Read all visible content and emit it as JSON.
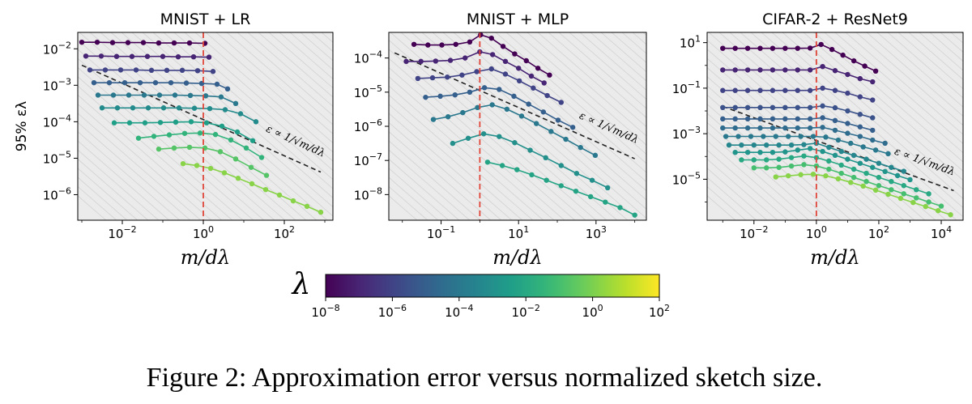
{
  "caption": "Figure 2: Approximation error versus normalized sketch size.",
  "colors": {
    "plot_bg": "#ebebeb",
    "hatch": "#d4d4d4",
    "ref_line": "#e0473a",
    "trend_line": "#222222"
  },
  "colorbar": {
    "label": "λ",
    "min_exp": -8,
    "max_exp": 2,
    "ticks": [
      -8,
      -6,
      -4,
      -2,
      0,
      2
    ],
    "tick_labels": [
      "10^-8",
      "10^-6",
      "10^-4",
      "10^-2",
      "10^0",
      "10^2"
    ],
    "colormap": "viridis"
  },
  "chart_data": [
    {
      "type": "line",
      "title": "MNIST + LR",
      "xlabel": "m/dλ",
      "ylabel": "95% ελ",
      "xscale": "log",
      "yscale": "log",
      "xlim_log10": [
        -3.1,
        3.2
      ],
      "ylim_log10": [
        -6.7,
        -1.55
      ],
      "xticks": [
        -2,
        0,
        2
      ],
      "xtick_labels": [
        "10^-2",
        "10^0",
        "10^2"
      ],
      "yticks": [
        -6,
        -5,
        -4,
        -3,
        -2
      ],
      "ytick_labels": [
        "10^-6",
        "10^-5",
        "10^-4",
        "10^-3",
        "10^-2"
      ],
      "vline_x_log10": 0,
      "trend_line": {
        "x_log10": [
          -3.0,
          2.9
        ],
        "y_log10": [
          -2.45,
          -5.38
        ],
        "label": "ε ∝ 1/√m/dλ"
      },
      "series": [
        {
          "lambda_log10": -8,
          "x_log10": [
            -3.0,
            -2.62,
            -2.24,
            -1.86,
            -1.48,
            -1.1,
            -0.72,
            -0.34,
            0.04
          ],
          "y_log10": [
            -1.82,
            -1.82,
            -1.83,
            -1.83,
            -1.83,
            -1.84,
            -1.84,
            -1.84,
            -1.85
          ]
        },
        {
          "lambda_log10": -7,
          "x_log10": [
            -2.9,
            -2.52,
            -2.14,
            -1.76,
            -1.38,
            -1.0,
            -0.62,
            -0.24,
            0.14
          ],
          "y_log10": [
            -2.2,
            -2.2,
            -2.21,
            -2.21,
            -2.21,
            -2.21,
            -2.22,
            -2.22,
            -2.23
          ]
        },
        {
          "lambda_log10": -6,
          "x_log10": [
            -2.8,
            -2.42,
            -2.04,
            -1.66,
            -1.28,
            -0.9,
            -0.52,
            -0.14,
            0.24
          ],
          "y_log10": [
            -2.58,
            -2.58,
            -2.58,
            -2.58,
            -2.59,
            -2.59,
            -2.59,
            -2.6,
            -2.62
          ]
        },
        {
          "lambda_log10": -5,
          "x_log10": [
            -2.7,
            -2.32,
            -1.94,
            -1.56,
            -1.18,
            -0.8,
            -0.42,
            -0.04,
            0.34,
            0.6
          ],
          "y_log10": [
            -2.93,
            -2.93,
            -2.93,
            -2.93,
            -2.93,
            -2.93,
            -2.94,
            -2.95,
            -2.97,
            -3.1
          ]
        },
        {
          "lambda_log10": -4,
          "x_log10": [
            -2.6,
            -2.22,
            -1.84,
            -1.46,
            -1.08,
            -0.7,
            -0.32,
            0.06,
            0.44,
            0.8
          ],
          "y_log10": [
            -3.27,
            -3.27,
            -3.27,
            -3.27,
            -3.27,
            -3.27,
            -3.28,
            -3.29,
            -3.32,
            -3.5
          ]
        },
        {
          "lambda_log10": -3.2,
          "x_log10": [
            -2.5,
            -2.12,
            -1.74,
            -1.36,
            -0.98,
            -0.6,
            -0.22,
            0.16,
            0.54,
            0.92,
            1.3
          ],
          "y_log10": [
            -3.62,
            -3.62,
            -3.62,
            -3.62,
            -3.62,
            -3.62,
            -3.63,
            -3.64,
            -3.67,
            -3.78,
            -4.0
          ]
        },
        {
          "lambda_log10": -2.4,
          "x_log10": [
            -2.2,
            -1.82,
            -1.44,
            -1.06,
            -0.68,
            -0.3,
            0.08,
            0.46,
            0.84,
            1.22
          ],
          "y_log10": [
            -4.03,
            -4.03,
            -4.03,
            -4.02,
            -4.01,
            -4.0,
            -4.03,
            -4.12,
            -4.28,
            -4.52
          ]
        },
        {
          "lambda_log10": -1.5,
          "x_log10": [
            -1.6,
            -1.22,
            -0.84,
            -0.46,
            -0.08,
            0.3,
            0.68,
            1.06,
            1.44
          ],
          "y_log10": [
            -4.45,
            -4.4,
            -4.36,
            -4.32,
            -4.31,
            -4.35,
            -4.5,
            -4.72,
            -4.98
          ]
        },
        {
          "lambda_log10": -0.7,
          "x_log10": [
            -1.1,
            -0.72,
            -0.34,
            0.04,
            0.42,
            0.8,
            1.18,
            1.56
          ],
          "y_log10": [
            -4.75,
            -4.72,
            -4.7,
            -4.72,
            -4.82,
            -5.02,
            -5.25,
            -5.47
          ]
        },
        {
          "lambda_log10": 0.2,
          "x_log10": [
            -0.5,
            -0.16,
            0.18,
            0.52,
            0.86,
            1.2,
            1.54,
            1.88,
            2.22,
            2.56,
            2.9
          ],
          "y_log10": [
            -5.15,
            -5.2,
            -5.28,
            -5.4,
            -5.55,
            -5.7,
            -5.86,
            -6.01,
            -6.17,
            -6.32,
            -6.48
          ]
        }
      ]
    },
    {
      "type": "line",
      "title": "MNIST + MLP",
      "xlabel": "m/dλ",
      "ylabel": "",
      "xscale": "log",
      "yscale": "log",
      "xlim_log10": [
        -2.35,
        4.3
      ],
      "ylim_log10": [
        -8.75,
        -3.25
      ],
      "xticks": [
        -1,
        1,
        3
      ],
      "xtick_labels": [
        "10^-1",
        "10^1",
        "10^3"
      ],
      "yticks": [
        -8,
        -7,
        -6,
        -5,
        -4
      ],
      "ytick_labels": [
        "10^-8",
        "10^-7",
        "10^-6",
        "10^-5",
        "10^-4"
      ],
      "vline_x_log10": 0,
      "trend_line": {
        "x_log10": [
          -2.2,
          4.0
        ],
        "y_log10": [
          -3.85,
          -6.95
        ],
        "label": "ε ∝ 1/√m/dλ"
      },
      "series": [
        {
          "lambda_log10": -8,
          "x_log10": [
            -1.7,
            -1.34,
            -0.98,
            -0.62,
            -0.26,
            0.02,
            0.3,
            0.6,
            0.9,
            1.2,
            1.5,
            1.8
          ],
          "y_log10": [
            -3.6,
            -3.62,
            -3.62,
            -3.6,
            -3.53,
            -3.32,
            -3.42,
            -3.66,
            -3.88,
            -4.08,
            -4.3,
            -4.5
          ]
        },
        {
          "lambda_log10": -7,
          "x_log10": [
            -1.9,
            -1.52,
            -1.14,
            -0.76,
            -0.38,
            0.0,
            0.33,
            0.66,
            1.0,
            1.33,
            1.66
          ],
          "y_log10": [
            -4.1,
            -4.1,
            -4.09,
            -4.07,
            -4.0,
            -3.82,
            -3.9,
            -4.1,
            -4.3,
            -4.53,
            -4.73
          ]
        },
        {
          "lambda_log10": -6,
          "x_log10": [
            -1.6,
            -1.22,
            -0.84,
            -0.46,
            -0.08,
            0.3,
            0.66,
            1.02,
            1.38,
            1.74,
            2.1
          ],
          "y_log10": [
            -4.6,
            -4.58,
            -4.56,
            -4.5,
            -4.4,
            -4.32,
            -4.47,
            -4.67,
            -4.88,
            -5.1,
            -5.3
          ]
        },
        {
          "lambda_log10": -5,
          "x_log10": [
            -1.4,
            -1.02,
            -0.64,
            -0.26,
            0.12,
            0.5,
            0.88,
            1.26,
            1.64,
            2.02,
            2.4
          ],
          "y_log10": [
            -5.15,
            -5.12,
            -5.08,
            -5.0,
            -4.87,
            -4.92,
            -5.12,
            -5.35,
            -5.58,
            -5.82,
            -6.03
          ]
        },
        {
          "lambda_log10": -4,
          "x_log10": [
            -1.2,
            -0.82,
            -0.44,
            -0.06,
            0.32,
            0.7,
            1.08,
            1.46,
            1.84,
            2.22,
            2.6,
            2.98
          ],
          "y_log10": [
            -5.8,
            -5.72,
            -5.6,
            -5.45,
            -5.37,
            -5.5,
            -5.7,
            -5.92,
            -6.15,
            -6.38,
            -6.62,
            -6.85
          ]
        },
        {
          "lambda_log10": -3,
          "x_log10": [
            -0.7,
            -0.3,
            0.1,
            0.5,
            0.9,
            1.3,
            1.7,
            2.1,
            2.5,
            2.9,
            3.3
          ],
          "y_log10": [
            -6.5,
            -6.35,
            -6.22,
            -6.3,
            -6.48,
            -6.7,
            -6.92,
            -7.15,
            -7.38,
            -7.58,
            -7.8
          ]
        },
        {
          "lambda_log10": -2.2,
          "x_log10": [
            0.2,
            0.58,
            0.96,
            1.34,
            1.72,
            2.1,
            2.48,
            2.86,
            3.24,
            3.62,
            4.0
          ],
          "y_log10": [
            -7.05,
            -7.15,
            -7.27,
            -7.42,
            -7.58,
            -7.74,
            -7.9,
            -8.06,
            -8.22,
            -8.38,
            -8.6
          ]
        }
      ]
    },
    {
      "type": "line",
      "title": "CIFAR-2 + ResNet9",
      "xlabel": "m/dλ",
      "ylabel": "",
      "xscale": "log",
      "yscale": "log",
      "xlim_log10": [
        -3.5,
        4.7
      ],
      "ylim_log10": [
        -6.8,
        1.45
      ],
      "xticks": [
        -2,
        0,
        2,
        4
      ],
      "xtick_labels": [
        "10^-2",
        "10^0",
        "10^2",
        "10^4"
      ],
      "yticks": [
        -5,
        -3,
        -1,
        1
      ],
      "ytick_labels": [
        "10^-5",
        "10^-3",
        "10^-1",
        "10^1"
      ],
      "vline_x_log10": 0,
      "trend_line": {
        "x_log10": [
          -3.0,
          4.4
        ],
        "y_log10": [
          -1.8,
          -5.5
        ],
        "label": "ε ∝ 1/√m/dλ"
      },
      "series": [
        {
          "lambda_log10": -8,
          "x_log10": [
            -3.0,
            -2.6,
            -2.2,
            -1.8,
            -1.4,
            -1.0,
            -0.6,
            -0.2,
            0.15,
            0.5,
            0.85,
            1.2,
            1.55,
            1.9
          ],
          "y_log10": [
            0.75,
            0.75,
            0.75,
            0.75,
            0.75,
            0.75,
            0.75,
            0.76,
            0.92,
            0.7,
            0.45,
            0.2,
            -0.03,
            -0.25
          ]
        },
        {
          "lambda_log10": -7,
          "x_log10": [
            -3.0,
            -2.6,
            -2.2,
            -1.8,
            -1.4,
            -1.0,
            -0.6,
            -0.2,
            0.2,
            0.6,
            1.0,
            1.4,
            1.8
          ],
          "y_log10": [
            -0.2,
            -0.2,
            -0.2,
            -0.2,
            -0.2,
            -0.2,
            -0.2,
            -0.2,
            -0.05,
            -0.23,
            -0.4,
            -0.58,
            -0.72
          ]
        },
        {
          "lambda_log10": -6,
          "x_log10": [
            -3.0,
            -2.6,
            -2.2,
            -1.8,
            -1.4,
            -1.0,
            -0.6,
            -0.2,
            0.2,
            0.6,
            1.0,
            1.4,
            1.8
          ],
          "y_log10": [
            -1.1,
            -1.1,
            -1.1,
            -1.1,
            -1.1,
            -1.1,
            -1.1,
            -1.1,
            -1.0,
            -1.1,
            -1.22,
            -1.38,
            -1.52
          ]
        },
        {
          "lambda_log10": -5.5,
          "x_log10": [
            -3.0,
            -2.6,
            -2.2,
            -1.8,
            -1.4,
            -1.0,
            -0.6,
            -0.2,
            0.2,
            0.6,
            1.0,
            1.4,
            1.8
          ],
          "y_log10": [
            -1.85,
            -1.85,
            -1.85,
            -1.85,
            -1.85,
            -1.85,
            -1.85,
            -1.85,
            -1.78,
            -1.86,
            -2.0,
            -2.15,
            -2.3
          ]
        },
        {
          "lambda_log10": -5,
          "x_log10": [
            -3.0,
            -2.6,
            -2.2,
            -1.8,
            -1.4,
            -1.0,
            -0.6,
            -0.2,
            0.2,
            0.6,
            1.0,
            1.4,
            1.8
          ],
          "y_log10": [
            -2.35,
            -2.35,
            -2.35,
            -2.35,
            -2.35,
            -2.35,
            -2.35,
            -2.35,
            -2.3,
            -2.42,
            -2.55,
            -2.7,
            -2.85
          ]
        },
        {
          "lambda_log10": -4.5,
          "x_log10": [
            -3.0,
            -2.6,
            -2.2,
            -1.8,
            -1.4,
            -1.0,
            -0.6,
            -0.2,
            0.2,
            0.6,
            1.0,
            1.4,
            1.8,
            2.2
          ],
          "y_log10": [
            -2.75,
            -2.75,
            -2.75,
            -2.75,
            -2.75,
            -2.75,
            -2.75,
            -2.75,
            -2.72,
            -2.85,
            -2.98,
            -3.12,
            -3.28,
            -3.42
          ]
        },
        {
          "lambda_log10": -4,
          "x_log10": [
            -2.9,
            -2.5,
            -2.1,
            -1.7,
            -1.3,
            -0.9,
            -0.5,
            -0.1,
            0.3,
            0.7,
            1.1,
            1.5,
            1.9,
            2.3
          ],
          "y_log10": [
            -3.12,
            -3.12,
            -3.12,
            -3.12,
            -3.12,
            -3.12,
            -3.12,
            -3.12,
            -3.15,
            -3.28,
            -3.42,
            -3.58,
            -3.72,
            -3.88
          ]
        },
        {
          "lambda_log10": -3.4,
          "x_log10": [
            -2.8,
            -2.4,
            -2.0,
            -1.6,
            -1.2,
            -0.8,
            -0.4,
            0.0,
            0.4,
            0.8,
            1.2,
            1.6,
            2.0,
            2.4,
            2.8
          ],
          "y_log10": [
            -3.5,
            -3.5,
            -3.5,
            -3.5,
            -3.5,
            -3.5,
            -3.48,
            -3.42,
            -3.6,
            -3.78,
            -3.95,
            -4.12,
            -4.3,
            -4.48,
            -4.65
          ]
        },
        {
          "lambda_log10": -2.8,
          "x_log10": [
            -2.6,
            -2.2,
            -1.8,
            -1.4,
            -1.0,
            -0.6,
            -0.2,
            0.2,
            0.6,
            1.0,
            1.4,
            1.8,
            2.2,
            2.6,
            3.0
          ],
          "y_log10": [
            -3.82,
            -3.82,
            -3.82,
            -3.82,
            -3.8,
            -3.72,
            -3.65,
            -3.78,
            -3.95,
            -4.12,
            -4.3,
            -4.48,
            -4.66,
            -4.84,
            -5.02
          ]
        },
        {
          "lambda_log10": -2,
          "x_log10": [
            -2.4,
            -2.0,
            -1.6,
            -1.2,
            -0.8,
            -0.4,
            0.0,
            0.4,
            0.8,
            1.2,
            1.6,
            2.0,
            2.4,
            2.8,
            3.2,
            3.6
          ],
          "y_log10": [
            -4.15,
            -4.15,
            -4.15,
            -4.12,
            -4.05,
            -3.98,
            -4.05,
            -4.2,
            -4.38,
            -4.56,
            -4.74,
            -4.92,
            -5.1,
            -5.28,
            -5.46,
            -5.64
          ]
        },
        {
          "lambda_log10": -1,
          "x_log10": [
            -2.0,
            -1.6,
            -1.2,
            -0.8,
            -0.4,
            0.0,
            0.4,
            0.8,
            1.2,
            1.6,
            2.0,
            2.4,
            2.8,
            3.2,
            3.6,
            4.0
          ],
          "y_log10": [
            -4.5,
            -4.5,
            -4.48,
            -4.42,
            -4.36,
            -4.42,
            -4.56,
            -4.74,
            -4.92,
            -5.1,
            -5.28,
            -5.46,
            -5.64,
            -5.82,
            -6.0,
            -6.18
          ]
        },
        {
          "lambda_log10": 0.2,
          "x_log10": [
            -1.3,
            -0.9,
            -0.5,
            -0.1,
            0.3,
            0.7,
            1.1,
            1.5,
            1.9,
            2.3,
            2.7,
            3.1,
            3.5,
            3.9,
            4.3
          ],
          "y_log10": [
            -4.9,
            -4.85,
            -4.8,
            -4.78,
            -4.85,
            -4.98,
            -5.14,
            -5.3,
            -5.48,
            -5.66,
            -5.84,
            -6.02,
            -6.2,
            -6.38,
            -6.56
          ]
        }
      ]
    }
  ]
}
